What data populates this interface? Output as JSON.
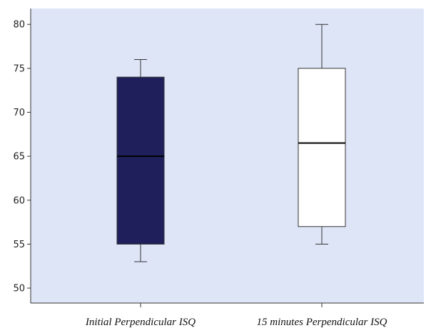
{
  "chart_data": {
    "type": "box",
    "categories": [
      "Initial Perpendicular ISQ",
      "15 minutes Perpendicular ISQ"
    ],
    "series": [
      {
        "min": 53,
        "q1": 55,
        "median": 65,
        "q3": 74,
        "max": 76,
        "fill": "#1f1f5c"
      },
      {
        "min": 55,
        "q1": 57,
        "median": 66.5,
        "q3": 75,
        "max": 80,
        "fill": "#ffffff"
      }
    ],
    "y_ticks": [
      50,
      55,
      60,
      65,
      70,
      75,
      80
    ],
    "ylim": [
      48.3,
      81.8
    ],
    "grid": false,
    "colors": {
      "plot_background": "#dde5f7",
      "axis": "#333333"
    }
  }
}
